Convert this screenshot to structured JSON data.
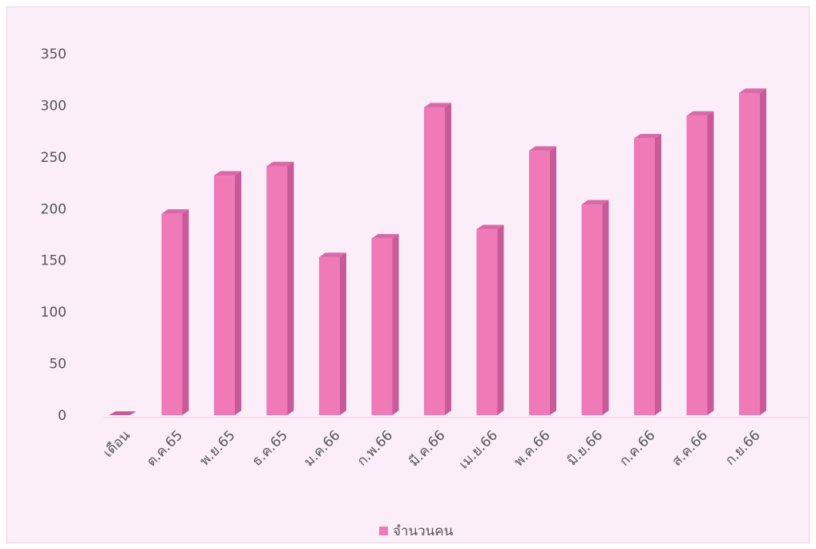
{
  "chart_data": {
    "type": "bar",
    "categories": [
      "เดือน",
      "ต.ค.65",
      "พ.ย.65",
      "ธ.ค.65",
      "ม.ค.66",
      "ก.พ.66",
      "มี.ค.66",
      "เม.ย.66",
      "พ.ค.66",
      "มิ.ย.66",
      "ก.ค.66",
      "ส.ค.66",
      "ก.ย.66"
    ],
    "series": [
      {
        "name": "จำนวนคน",
        "values": [
          0,
          195,
          232,
          241,
          153,
          171,
          298,
          180,
          256,
          204,
          268,
          290,
          312
        ]
      }
    ],
    "yticks": [
      "0",
      "50",
      "100",
      "150",
      "200",
      "250",
      "300",
      "350"
    ],
    "ylim": [
      0,
      350
    ],
    "grid": false,
    "legend_position": "bottom",
    "colors": {
      "bar_front": "#f07ab8",
      "bar_side": "#c75a97",
      "bar_top": "#d96aa8",
      "background": "#fbeef8"
    }
  }
}
